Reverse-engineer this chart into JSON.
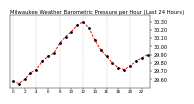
{
  "title": "Milwaukee Weather Barometric Pressure per Hour (Last 24 Hours)",
  "hours": [
    0,
    1,
    2,
    3,
    4,
    5,
    6,
    7,
    8,
    9,
    10,
    11,
    12,
    13,
    14,
    15,
    16,
    17,
    18,
    19,
    20,
    21,
    22,
    23
  ],
  "pressure": [
    29.58,
    29.55,
    29.6,
    29.68,
    29.72,
    29.82,
    29.88,
    29.92,
    30.04,
    30.12,
    30.18,
    30.26,
    30.3,
    30.22,
    30.08,
    29.96,
    29.88,
    29.8,
    29.74,
    29.72,
    29.76,
    29.82,
    29.86,
    29.9
  ],
  "line_color": "#ff0000",
  "marker_color": "#000000",
  "bg_color": "#ffffff",
  "grid_color": "#888888",
  "ylim_min": 29.5,
  "ylim_max": 30.38,
  "ylabel_fontsize": 3.5,
  "xlabel_fontsize": 3.0,
  "title_fontsize": 3.8,
  "yticks": [
    29.6,
    29.7,
    29.8,
    29.9,
    30.0,
    30.1,
    30.2,
    30.3
  ],
  "xtick_hours": [
    0,
    2,
    4,
    6,
    8,
    10,
    12,
    14,
    16,
    18,
    20,
    22
  ],
  "xtick_labels": [
    "0",
    "2",
    "4",
    "6",
    "8",
    "10",
    "12",
    "14",
    "16",
    "18",
    "20",
    "22"
  ],
  "vgrid_positions": [
    0,
    4,
    8,
    12,
    16,
    20
  ]
}
